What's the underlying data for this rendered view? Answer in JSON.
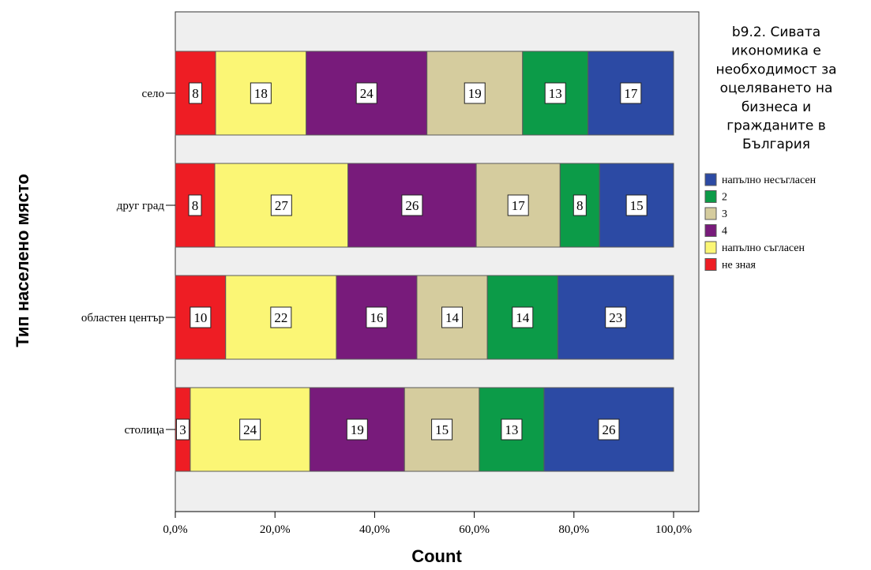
{
  "chart_data": {
    "type": "bar",
    "orientation": "horizontal",
    "stacked": "percent",
    "title": "",
    "xlabel": "Count",
    "ylabel": "Тип населено място",
    "xlim": [
      0,
      100
    ],
    "x_ticks": [
      0,
      20,
      40,
      60,
      80,
      100
    ],
    "x_tick_labels": [
      "0,0%",
      "20,0%",
      "40,0%",
      "60,0%",
      "80,0%",
      "100,0%"
    ],
    "grid": false,
    "legend_position": "right",
    "legend_title": "b9.2. Сивата икономика е необходимост за оцеляването на бизнеса и гражданите в България",
    "legend_title_lines": [
      "b9.2. Сивата",
      "икономика е",
      "необходимост за",
      "оцеляването на",
      "бизнеса и",
      "гражданите в",
      "България"
    ],
    "categories": [
      "село",
      "друг град",
      "областен център",
      "столица"
    ],
    "series": [
      {
        "name": "не зная",
        "color": "#ee1d24",
        "values": [
          8,
          8,
          10,
          3
        ]
      },
      {
        "name": "напълно съгласен",
        "color": "#fbf675",
        "values": [
          18,
          27,
          22,
          24
        ]
      },
      {
        "name": "4",
        "color": "#781b7b",
        "values": [
          24,
          26,
          16,
          19
        ]
      },
      {
        "name": "3",
        "color": "#d5cc9e",
        "values": [
          19,
          17,
          14,
          15
        ]
      },
      {
        "name": "2",
        "color": "#0c9b48",
        "values": [
          13,
          8,
          14,
          13
        ]
      },
      {
        "name": "напълно несъгласен",
        "color": "#2c4aa4",
        "values": [
          17,
          15,
          23,
          26
        ]
      }
    ],
    "legend_order": [
      "напълно несъгласен",
      "2",
      "3",
      "4",
      "напълно съгласен",
      "не зная"
    ]
  },
  "colors": {
    "plot_background": "#efefef",
    "outline": "#5a5a5a"
  }
}
